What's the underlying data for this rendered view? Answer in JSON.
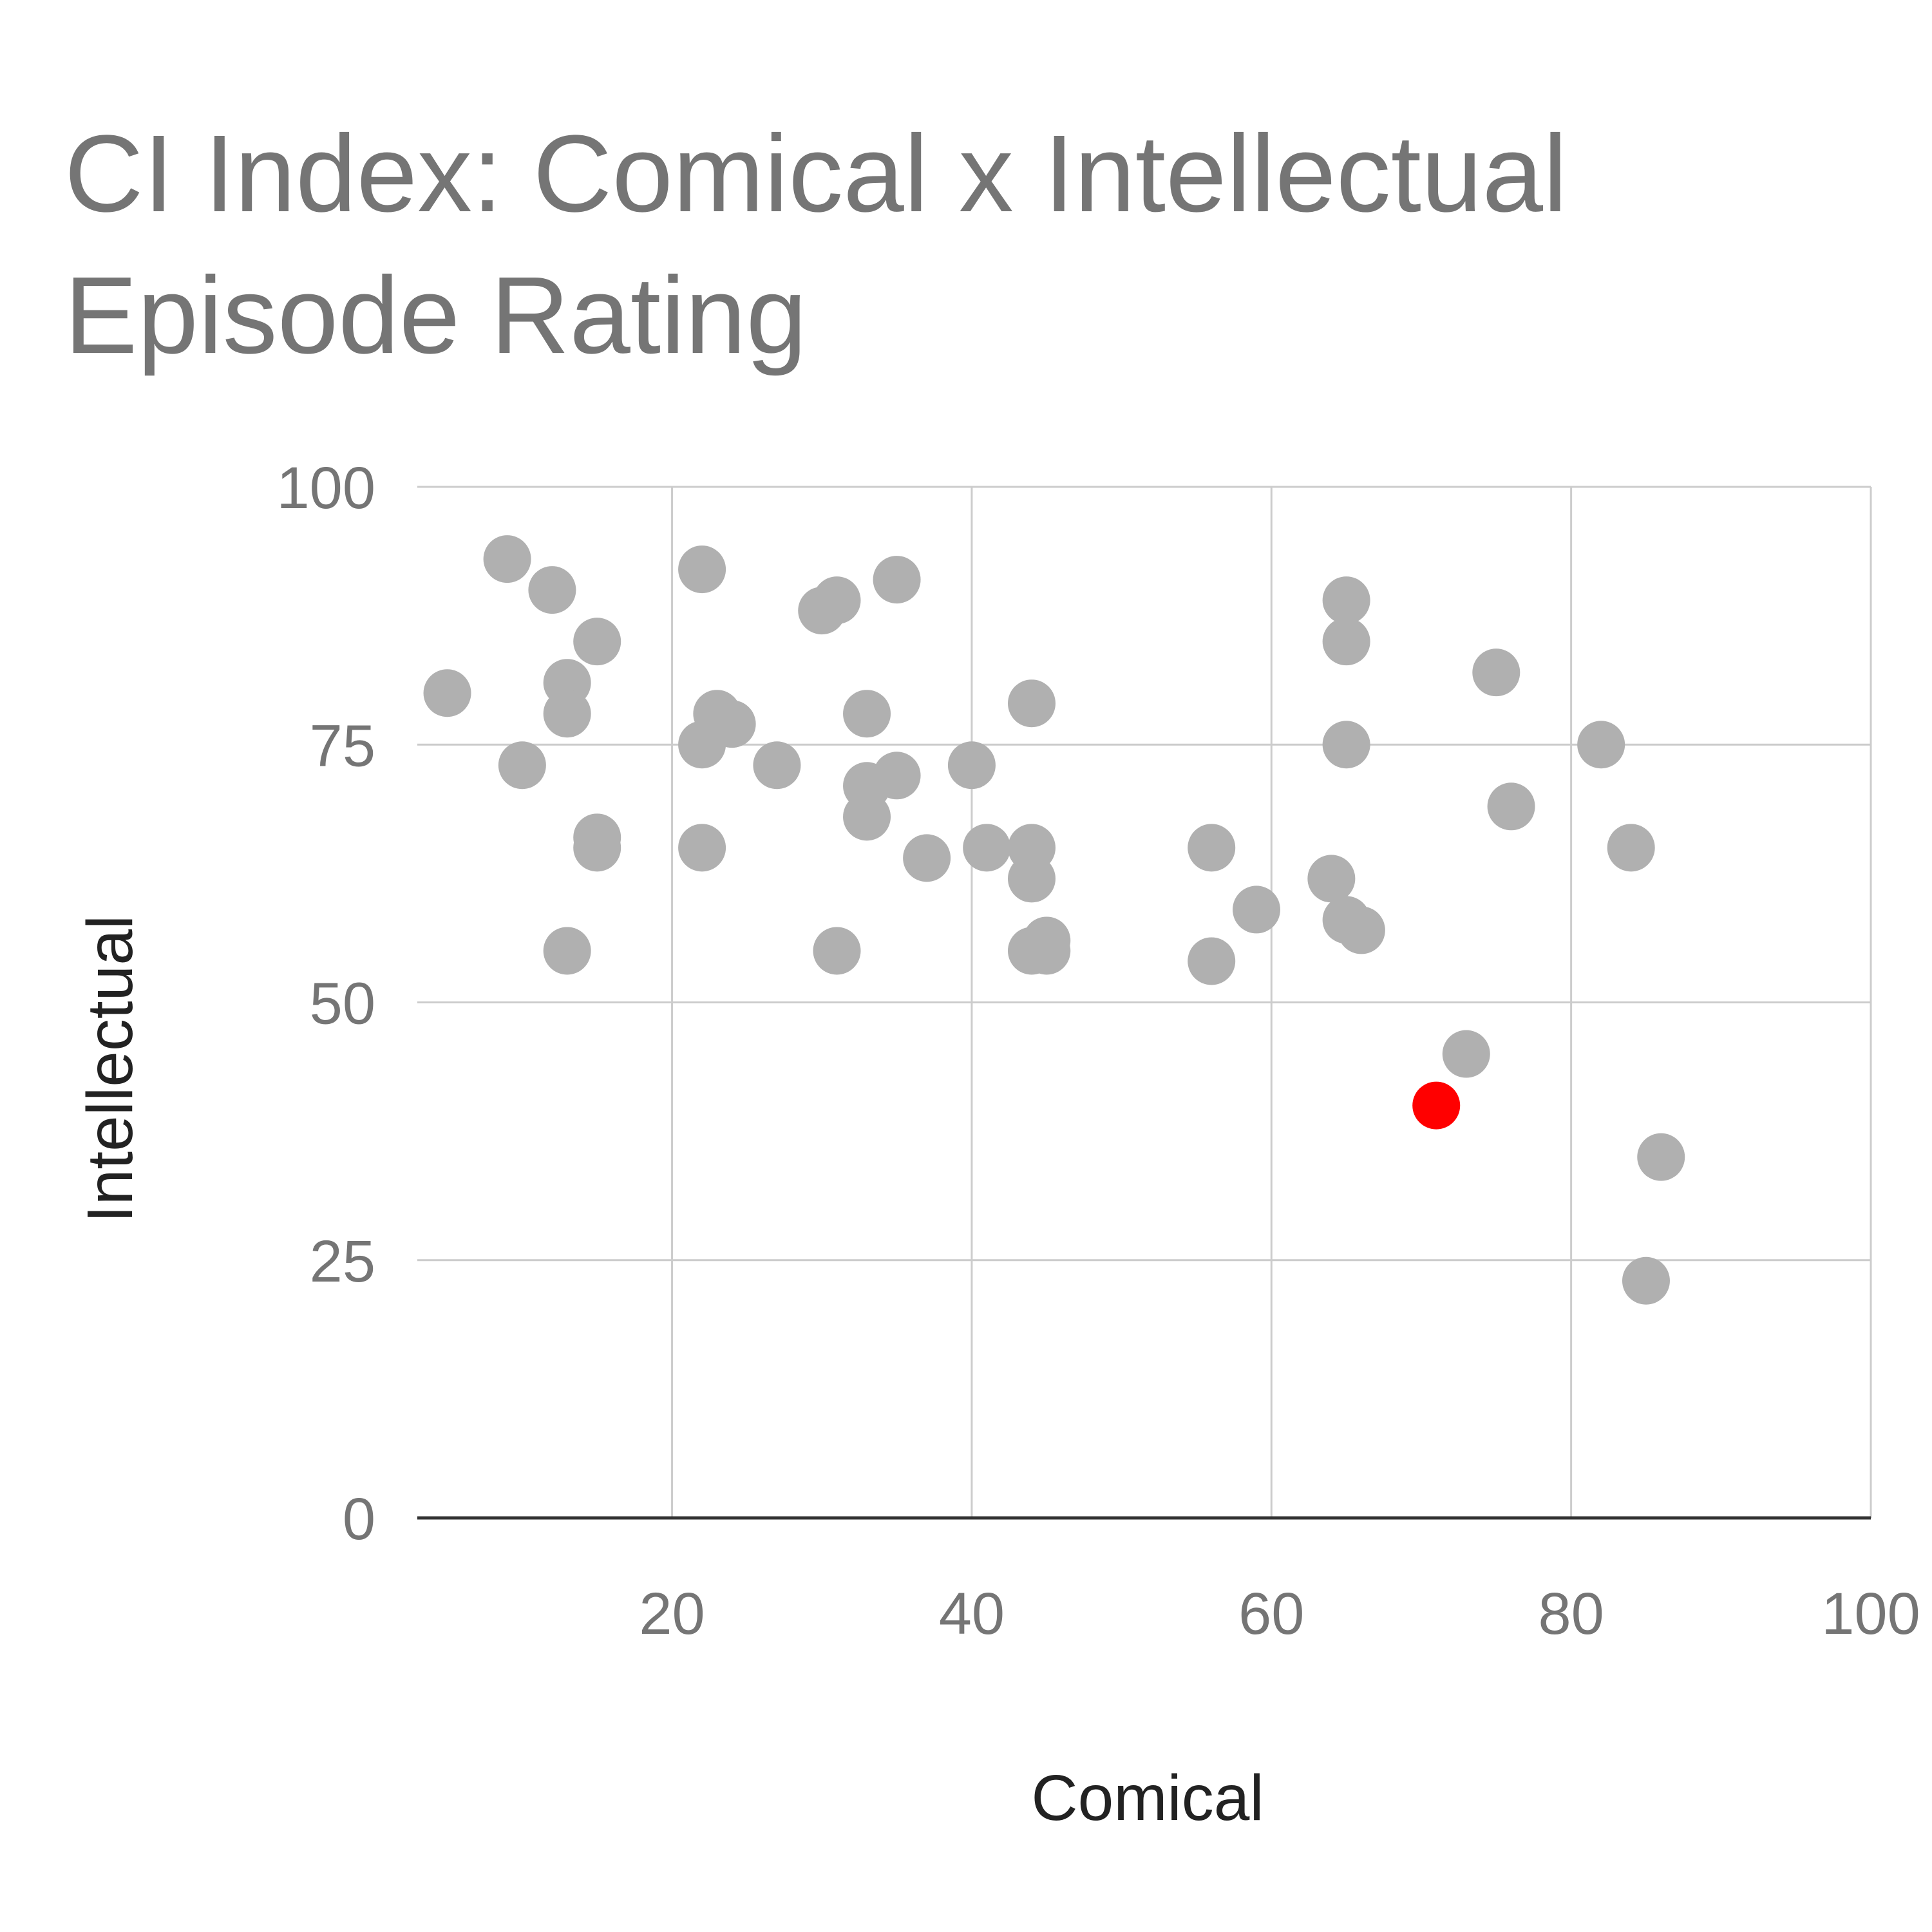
{
  "chart_data": {
    "type": "scatter",
    "title_lines": [
      "CI Index: Comical x Intellectual",
      "Episode Rating"
    ],
    "xlabel": "Comical",
    "ylabel": "Intellectual",
    "xlim": [
      3,
      100
    ],
    "ylim": [
      0,
      100
    ],
    "x_ticks": [
      "20",
      "40",
      "60",
      "80",
      "100"
    ],
    "y_ticks": [
      "0",
      "25",
      "50",
      "75",
      "100"
    ],
    "grid": true,
    "legend": "none",
    "colors": {
      "points": "#b0b0b0",
      "highlight": "#ff0000",
      "grid": "#cccccc",
      "baseline": "#333333"
    },
    "series": [
      {
        "points": [
          {
            "x": 5,
            "y": 80
          },
          {
            "x": 9,
            "y": 93
          },
          {
            "x": 10,
            "y": 73
          },
          {
            "x": 12,
            "y": 90
          },
          {
            "x": 13,
            "y": 81
          },
          {
            "x": 13,
            "y": 78
          },
          {
            "x": 13,
            "y": 55
          },
          {
            "x": 15,
            "y": 85
          },
          {
            "x": 15,
            "y": 66
          },
          {
            "x": 15,
            "y": 65
          },
          {
            "x": 22,
            "y": 92
          },
          {
            "x": 22,
            "y": 75
          },
          {
            "x": 22,
            "y": 65
          },
          {
            "x": 23,
            "y": 78
          },
          {
            "x": 24,
            "y": 77
          },
          {
            "x": 27,
            "y": 73
          },
          {
            "x": 30,
            "y": 88
          },
          {
            "x": 31,
            "y": 89
          },
          {
            "x": 31,
            "y": 55
          },
          {
            "x": 33,
            "y": 78
          },
          {
            "x": 33,
            "y": 71
          },
          {
            "x": 33,
            "y": 68
          },
          {
            "x": 35,
            "y": 91
          },
          {
            "x": 35,
            "y": 72
          },
          {
            "x": 37,
            "y": 64
          },
          {
            "x": 40,
            "y": 73
          },
          {
            "x": 41,
            "y": 65
          },
          {
            "x": 44,
            "y": 79
          },
          {
            "x": 44,
            "y": 65
          },
          {
            "x": 44,
            "y": 62
          },
          {
            "x": 44,
            "y": 55
          },
          {
            "x": 45,
            "y": 56
          },
          {
            "x": 45,
            "y": 55
          },
          {
            "x": 56,
            "y": 65
          },
          {
            "x": 56,
            "y": 54
          },
          {
            "x": 59,
            "y": 59
          },
          {
            "x": 64,
            "y": 62
          },
          {
            "x": 65,
            "y": 89
          },
          {
            "x": 65,
            "y": 85
          },
          {
            "x": 65,
            "y": 75
          },
          {
            "x": 65,
            "y": 58
          },
          {
            "x": 66,
            "y": 57
          },
          {
            "x": 73,
            "y": 45
          },
          {
            "x": 75,
            "y": 82
          },
          {
            "x": 76,
            "y": 69
          },
          {
            "x": 82,
            "y": 75
          },
          {
            "x": 84,
            "y": 65
          },
          {
            "x": 85,
            "y": 23
          },
          {
            "x": 86,
            "y": 35
          }
        ]
      },
      {
        "highlight": true,
        "points": [
          {
            "x": 71,
            "y": 40
          }
        ]
      }
    ]
  }
}
